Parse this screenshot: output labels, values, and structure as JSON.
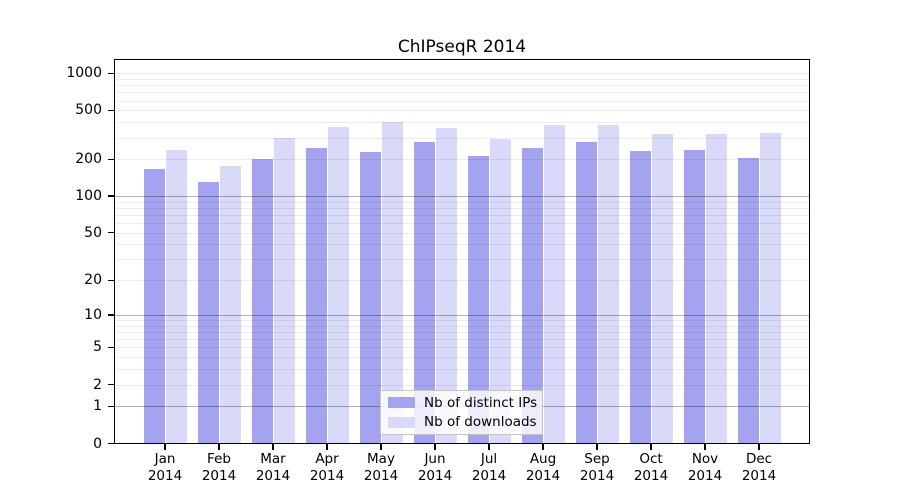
{
  "chart_data": {
    "type": "bar",
    "title": "ChIPseqR 2014",
    "year_label": "2014",
    "months": [
      "Jan",
      "Feb",
      "Mar",
      "Apr",
      "May",
      "Jun",
      "Jul",
      "Aug",
      "Sep",
      "Oct",
      "Nov",
      "Dec"
    ],
    "series": [
      {
        "name": "Nb of distinct IPs",
        "color": "#a3a3f0",
        "values": [
          167,
          130,
          201,
          248,
          230,
          277,
          214,
          246,
          277,
          234,
          240,
          206
        ]
      },
      {
        "name": "Nb of downloads",
        "color": "#d9d9f9",
        "values": [
          236,
          176,
          297,
          369,
          405,
          358,
          291,
          378,
          377,
          320,
          322,
          328
        ]
      }
    ],
    "y_ticks": [
      0,
      1,
      2,
      5,
      10,
      20,
      50,
      100,
      200,
      500,
      1000
    ],
    "y_scale": "log10(1+x)",
    "ylim": [
      0,
      1300
    ],
    "xlabel": "",
    "ylabel": "",
    "grid": {
      "major_lines": [
        1,
        10,
        100
      ],
      "minor_lines": [
        2,
        3,
        4,
        5,
        6,
        7,
        8,
        9,
        20,
        30,
        40,
        50,
        60,
        70,
        80,
        90,
        200,
        300,
        400,
        500,
        600,
        700,
        800,
        900,
        1000
      ]
    },
    "legend_position": "bottom-center-inside"
  }
}
